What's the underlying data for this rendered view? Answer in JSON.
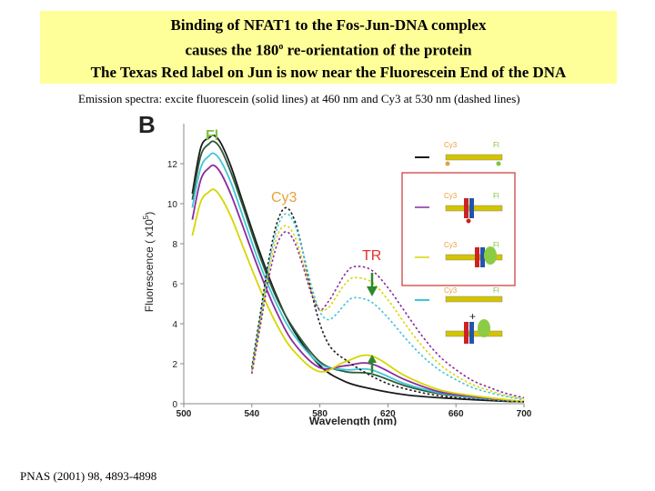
{
  "title": {
    "line1": "Binding of NFAT1 to the Fos-Jun-DNA complex",
    "line2_pre": "causes the 180",
    "line2_sup": "o",
    "line2_post": " re-orientation  of the protein",
    "line3": "The Texas Red label on Jun is now near the Fluorescein End of the DNA"
  },
  "caption": "Emission spectra:  excite fluorescein (solid lines) at 460 nm and Cy3 at 530 nm (dashed lines)",
  "citation": "PNAS (2001) 98, 4893-4898",
  "colors": {
    "title_bg": "#ffff99",
    "black": "#1a1a1a",
    "purple": "#8a2aa0",
    "yellow": "#d6d600",
    "cyan": "#3fc6d6",
    "dark_green": "#2d5a3a",
    "red_box": "#cc3333",
    "fi_label": "#7dc340",
    "cy3_label": "#e8a03c",
    "tr_label": "#e5302a",
    "arrow_green": "#2a8a2a"
  },
  "chart_data": {
    "type": "line",
    "panel_label": "B",
    "xlabel": "Wavelength (nm)",
    "ylabel_main": "Fluorescence",
    "ylabel_unit_pre": "( x10",
    "ylabel_unit_sup": "5",
    "ylabel_unit_post": ")",
    "xlim": [
      500,
      700
    ],
    "ylim": [
      0,
      14
    ],
    "xticks": [
      500,
      540,
      580,
      620,
      660,
      700
    ],
    "xtick_labels": [
      "500",
      "540",
      "580",
      "620",
      "660",
      "700"
    ],
    "yticks": [
      0,
      2,
      4,
      6,
      8,
      10,
      12
    ],
    "ytick_labels": [
      "0",
      "2",
      "4",
      "6",
      "8",
      "10",
      "12"
    ],
    "annotations": {
      "fi": "Fl",
      "cy3": "Cy3",
      "tr": "TR"
    },
    "series": [
      {
        "color": "black",
        "style": "solid",
        "x": [
          505,
          510,
          515,
          518,
          522,
          528,
          535,
          545,
          555,
          565,
          580,
          595,
          610,
          630,
          650,
          670,
          690,
          700
        ],
        "y": [
          10.5,
          12.8,
          13.3,
          13.4,
          13.0,
          11.8,
          10.0,
          7.5,
          5.3,
          3.6,
          1.9,
          1.1,
          0.75,
          0.45,
          0.3,
          0.2,
          0.12,
          0.1
        ]
      },
      {
        "color": "dark_green",
        "style": "solid",
        "x": [
          505,
          510,
          515,
          518,
          522,
          528,
          535,
          545,
          555,
          565,
          580,
          595,
          610,
          630,
          650,
          670,
          690,
          700
        ],
        "y": [
          10.2,
          12.4,
          13.0,
          13.1,
          12.7,
          11.5,
          9.8,
          7.3,
          5.2,
          3.7,
          2.1,
          1.6,
          1.5,
          0.9,
          0.5,
          0.3,
          0.15,
          0.1
        ]
      },
      {
        "color": "cyan",
        "style": "solid",
        "x": [
          505,
          510,
          515,
          518,
          522,
          528,
          535,
          545,
          555,
          565,
          580,
          595,
          610,
          630,
          650,
          670,
          690,
          700
        ],
        "y": [
          9.8,
          11.8,
          12.4,
          12.5,
          12.1,
          11.0,
          9.3,
          6.9,
          4.9,
          3.4,
          2.0,
          1.7,
          1.7,
          1.0,
          0.55,
          0.3,
          0.15,
          0.1
        ]
      },
      {
        "color": "purple",
        "style": "solid",
        "x": [
          505,
          510,
          515,
          518,
          522,
          528,
          535,
          545,
          555,
          565,
          580,
          595,
          610,
          630,
          650,
          670,
          690,
          700
        ],
        "y": [
          9.2,
          11.2,
          11.8,
          11.9,
          11.5,
          10.4,
          8.8,
          6.5,
          4.5,
          3.0,
          1.8,
          1.9,
          2.0,
          1.2,
          0.6,
          0.35,
          0.18,
          0.1
        ]
      },
      {
        "color": "yellow",
        "style": "solid",
        "x": [
          505,
          510,
          515,
          518,
          522,
          528,
          535,
          545,
          555,
          565,
          580,
          595,
          610,
          630,
          650,
          670,
          690,
          700
        ],
        "y": [
          8.4,
          10.1,
          10.6,
          10.7,
          10.3,
          9.3,
          7.8,
          5.7,
          3.9,
          2.6,
          1.6,
          2.1,
          2.4,
          1.4,
          0.7,
          0.4,
          0.2,
          0.1
        ]
      },
      {
        "color": "black",
        "style": "dashed",
        "x": [
          540,
          545,
          550,
          555,
          560,
          565,
          570,
          575,
          580,
          585,
          590,
          595,
          600,
          610,
          620,
          630,
          640,
          650,
          660,
          670,
          680,
          690,
          700
        ],
        "y": [
          1.8,
          4.5,
          7.2,
          9.1,
          9.8,
          9.2,
          7.6,
          5.6,
          4.0,
          3.0,
          2.5,
          2.2,
          1.9,
          1.4,
          1.0,
          0.75,
          0.55,
          0.4,
          0.3,
          0.22,
          0.16,
          0.12,
          0.1
        ]
      },
      {
        "color": "cyan",
        "style": "dashed",
        "x": [
          540,
          545,
          550,
          555,
          560,
          565,
          570,
          575,
          580,
          585,
          590,
          595,
          600,
          610,
          620,
          630,
          640,
          650,
          660,
          670,
          680,
          690,
          700
        ],
        "y": [
          1.7,
          4.3,
          6.9,
          8.8,
          9.5,
          9.0,
          7.6,
          5.9,
          4.6,
          4.2,
          4.5,
          5.0,
          5.3,
          5.1,
          4.3,
          3.3,
          2.4,
          1.7,
          1.2,
          0.8,
          0.55,
          0.35,
          0.2
        ]
      },
      {
        "color": "yellow",
        "style": "dashed",
        "x": [
          540,
          545,
          550,
          555,
          560,
          565,
          570,
          575,
          580,
          585,
          590,
          595,
          600,
          610,
          620,
          630,
          640,
          650,
          660,
          670,
          680,
          690,
          700
        ],
        "y": [
          1.6,
          4.1,
          6.6,
          8.4,
          8.9,
          8.4,
          7.1,
          5.6,
          4.7,
          4.8,
          5.4,
          6.0,
          6.3,
          6.1,
          5.2,
          4.0,
          2.9,
          2.0,
          1.4,
          0.95,
          0.65,
          0.4,
          0.25
        ]
      },
      {
        "color": "purple",
        "style": "dashed",
        "x": [
          540,
          545,
          550,
          555,
          560,
          565,
          570,
          575,
          580,
          585,
          590,
          595,
          600,
          610,
          620,
          630,
          640,
          650,
          660,
          670,
          680,
          690,
          700
        ],
        "y": [
          1.5,
          3.9,
          6.3,
          8.0,
          8.6,
          8.1,
          6.9,
          5.5,
          4.7,
          5.1,
          5.8,
          6.5,
          6.85,
          6.7,
          5.8,
          4.6,
          3.4,
          2.4,
          1.7,
          1.15,
          0.8,
          0.5,
          0.3
        ]
      }
    ]
  }
}
